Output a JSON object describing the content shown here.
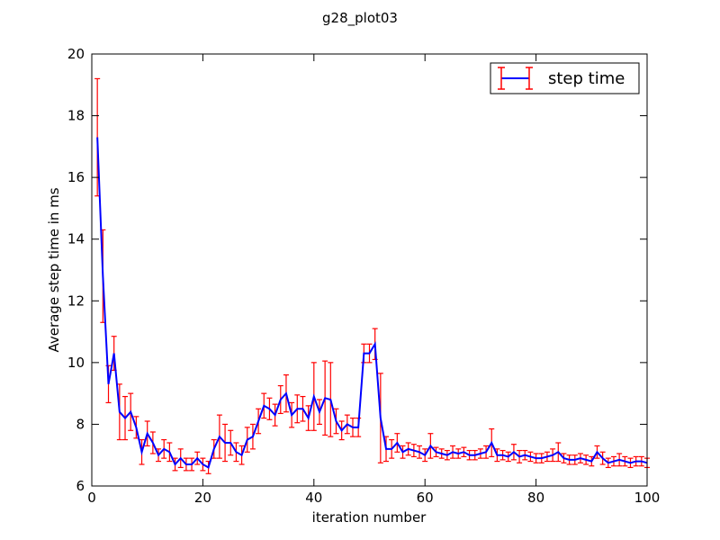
{
  "chart_data": {
    "type": "line",
    "title": "g28_plot03",
    "xlabel": "iteration number",
    "ylabel": "Average step time in ms",
    "xlim": [
      0,
      100
    ],
    "ylim": [
      6,
      20
    ],
    "xticks": [
      0,
      20,
      40,
      60,
      80,
      100
    ],
    "yticks": [
      6,
      8,
      10,
      12,
      14,
      16,
      18,
      20
    ],
    "grid": false,
    "legend_position": "top-right",
    "series": [
      {
        "name": "step time",
        "line_color": "#0000ff",
        "errorbar_color": "#ff0000",
        "x": [
          1,
          2,
          3,
          4,
          5,
          6,
          7,
          8,
          9,
          10,
          11,
          12,
          13,
          14,
          15,
          16,
          17,
          18,
          19,
          20,
          21,
          22,
          23,
          24,
          25,
          26,
          27,
          28,
          29,
          30,
          31,
          32,
          33,
          34,
          35,
          36,
          37,
          38,
          39,
          40,
          41,
          42,
          43,
          44,
          45,
          46,
          47,
          48,
          49,
          50,
          51,
          52,
          53,
          54,
          55,
          56,
          57,
          58,
          59,
          60,
          61,
          62,
          63,
          64,
          65,
          66,
          67,
          68,
          69,
          70,
          71,
          72,
          73,
          74,
          75,
          76,
          77,
          78,
          79,
          80,
          81,
          82,
          83,
          84,
          85,
          86,
          87,
          88,
          89,
          90,
          91,
          92,
          93,
          94,
          95,
          96,
          97,
          98,
          99,
          100
        ],
        "y": [
          17.3,
          12.8,
          9.3,
          10.3,
          8.4,
          8.2,
          8.4,
          7.9,
          7.1,
          7.7,
          7.4,
          7.0,
          7.2,
          7.1,
          6.7,
          6.9,
          6.7,
          6.7,
          6.9,
          6.7,
          6.6,
          7.2,
          7.6,
          7.4,
          7.4,
          7.1,
          7.0,
          7.5,
          7.6,
          8.1,
          8.6,
          8.5,
          8.3,
          8.8,
          9.0,
          8.3,
          8.5,
          8.5,
          8.2,
          8.9,
          8.4,
          8.85,
          8.8,
          8.1,
          7.8,
          8.0,
          7.9,
          7.9,
          10.3,
          10.3,
          10.6,
          8.2,
          7.2,
          7.2,
          7.4,
          7.1,
          7.2,
          7.15,
          7.1,
          7.0,
          7.3,
          7.1,
          7.05,
          7.0,
          7.1,
          7.05,
          7.1,
          7.0,
          7.0,
          7.05,
          7.1,
          7.4,
          7.0,
          7.0,
          6.95,
          7.1,
          6.95,
          7.0,
          6.95,
          6.9,
          6.9,
          6.95,
          7.0,
          7.1,
          6.9,
          6.85,
          6.85,
          6.9,
          6.85,
          6.8,
          7.1,
          6.9,
          6.75,
          6.8,
          6.85,
          6.8,
          6.75,
          6.8,
          6.8,
          6.75
        ],
        "error": [
          1.9,
          1.5,
          0.6,
          0.55,
          0.9,
          0.7,
          0.6,
          0.35,
          0.4,
          0.4,
          0.35,
          0.2,
          0.3,
          0.3,
          0.2,
          0.3,
          0.2,
          0.2,
          0.2,
          0.2,
          0.2,
          0.3,
          0.7,
          0.6,
          0.4,
          0.3,
          0.3,
          0.4,
          0.4,
          0.4,
          0.4,
          0.35,
          0.35,
          0.45,
          0.6,
          0.4,
          0.45,
          0.4,
          0.4,
          1.1,
          0.4,
          1.2,
          1.2,
          0.4,
          0.3,
          0.3,
          0.3,
          0.3,
          0.3,
          0.3,
          0.5,
          1.45,
          0.4,
          0.3,
          0.3,
          0.2,
          0.2,
          0.2,
          0.2,
          0.2,
          0.4,
          0.15,
          0.15,
          0.15,
          0.2,
          0.15,
          0.15,
          0.15,
          0.15,
          0.15,
          0.2,
          0.45,
          0.2,
          0.15,
          0.15,
          0.25,
          0.2,
          0.15,
          0.15,
          0.15,
          0.15,
          0.15,
          0.2,
          0.3,
          0.15,
          0.15,
          0.15,
          0.15,
          0.15,
          0.15,
          0.2,
          0.2,
          0.15,
          0.15,
          0.2,
          0.15,
          0.15,
          0.15,
          0.15,
          0.15
        ]
      }
    ]
  }
}
